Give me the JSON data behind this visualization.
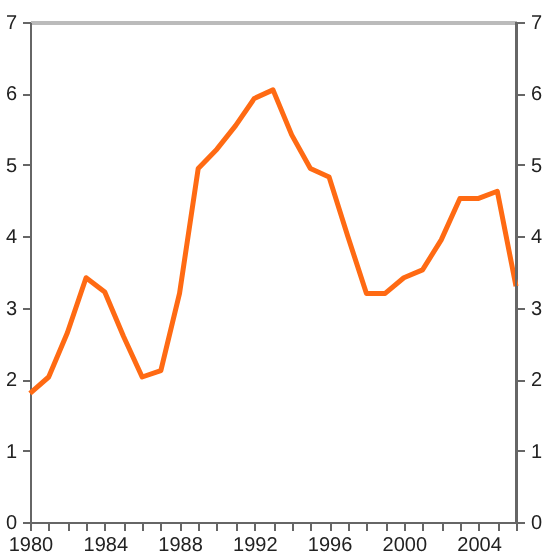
{
  "chart_data": {
    "type": "line",
    "x": [
      1980,
      1981,
      1982,
      1983,
      1984,
      1985,
      1986,
      1987,
      1988,
      1989,
      1990,
      1991,
      1992,
      1993,
      1994,
      1995,
      1996,
      1997,
      1998,
      1999,
      2000,
      2001,
      2002,
      2003,
      2004,
      2005,
      2006
    ],
    "series": [
      {
        "color": "#ff6a13",
        "values": [
          1.8,
          2.03,
          2.65,
          3.42,
          3.22,
          2.6,
          2.03,
          2.12,
          3.2,
          4.95,
          5.22,
          5.55,
          5.93,
          6.05,
          5.42,
          4.95,
          4.83,
          4.0,
          3.2,
          3.2,
          3.42,
          3.53,
          3.95,
          4.53,
          4.53,
          4.63,
          3.3
        ]
      }
    ],
    "xlim": [
      1980,
      2006
    ],
    "xticks": [
      1980,
      {
        "value": 1981,
        "label": null
      },
      {
        "value": 1982,
        "label": null
      },
      {
        "value": 1983,
        "label": null
      },
      1984,
      {
        "value": 1985,
        "label": null
      },
      {
        "value": 1986,
        "label": null
      },
      {
        "value": 1987,
        "label": null
      },
      1988,
      {
        "value": 1989,
        "label": null
      },
      {
        "value": 1990,
        "label": null
      },
      {
        "value": 1991,
        "label": null
      },
      1992,
      {
        "value": 1993,
        "label": null
      },
      {
        "value": 1994,
        "label": null
      },
      {
        "value": 1995,
        "label": null
      },
      1996,
      {
        "value": 1997,
        "label": null
      },
      {
        "value": 1998,
        "label": null
      },
      {
        "value": 1999,
        "label": null
      },
      2000,
      {
        "value": 2001,
        "label": null
      },
      {
        "value": 2002,
        "label": null
      },
      {
        "value": 2003,
        "label": null
      },
      2004,
      {
        "value": 2005,
        "label": null
      },
      {
        "value": 2006,
        "label": null
      }
    ],
    "ylim": [
      0,
      7
    ],
    "yticks": [
      0,
      1,
      2,
      3,
      4,
      5,
      6,
      7
    ],
    "y2lim": [
      0,
      7
    ],
    "y2ticks": [
      0,
      1,
      2,
      3,
      4,
      5,
      6,
      7
    ],
    "line_style": "solid",
    "marker": "none",
    "grid": false,
    "legend": false
  }
}
